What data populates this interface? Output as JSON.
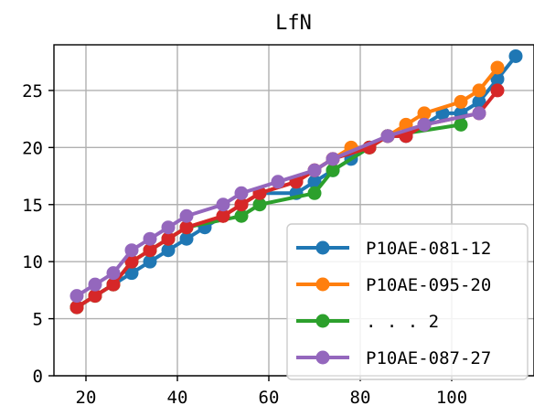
{
  "chart_data": {
    "type": "line",
    "title": "LfN",
    "xlabel": "",
    "ylabel": "",
    "xlim": [
      13,
      118
    ],
    "ylim": [
      0,
      29
    ],
    "xticks": [
      20,
      40,
      60,
      80,
      100
    ],
    "yticks": [
      0,
      5,
      10,
      15,
      20,
      25
    ],
    "grid": true,
    "legend_position": "lower-right",
    "series": [
      {
        "name": "P10AE-081-12",
        "color": "#1f77b4",
        "points": [
          [
            18,
            6
          ],
          [
            22,
            7
          ],
          [
            26,
            8
          ],
          [
            30,
            9
          ],
          [
            34,
            10
          ],
          [
            38,
            11
          ],
          [
            42,
            12
          ],
          [
            46,
            13
          ],
          [
            50,
            14
          ],
          [
            54,
            15
          ],
          [
            58,
            16
          ],
          [
            66,
            16
          ],
          [
            70,
            17
          ],
          [
            74,
            18
          ],
          [
            78,
            19
          ],
          [
            82,
            20
          ],
          [
            86,
            21
          ],
          [
            90,
            21
          ],
          [
            94,
            22
          ],
          [
            98,
            23
          ],
          [
            102,
            23
          ],
          [
            106,
            24
          ],
          [
            110,
            26
          ],
          [
            114,
            28
          ]
        ]
      },
      {
        "name": "P10AE-095-20",
        "color": "#ff7f0e",
        "points": [
          [
            18,
            6
          ],
          [
            22,
            7
          ],
          [
            26,
            8
          ],
          [
            30,
            10
          ],
          [
            34,
            11
          ],
          [
            38,
            12
          ],
          [
            42,
            13
          ],
          [
            50,
            14
          ],
          [
            54,
            15
          ],
          [
            58,
            16
          ],
          [
            66,
            17
          ],
          [
            70,
            18
          ],
          [
            74,
            19
          ],
          [
            78,
            20
          ],
          [
            82,
            20
          ],
          [
            86,
            21
          ],
          [
            90,
            22
          ],
          [
            94,
            23
          ],
          [
            102,
            24
          ],
          [
            106,
            25
          ],
          [
            110,
            27
          ]
        ]
      },
      {
        "name": ". . .  2",
        "color": "#2ca02c",
        "points": [
          [
            18,
            6
          ],
          [
            22,
            7
          ],
          [
            26,
            8
          ],
          [
            30,
            10
          ],
          [
            34,
            11
          ],
          [
            38,
            12
          ],
          [
            42,
            13
          ],
          [
            54,
            14
          ],
          [
            58,
            15
          ],
          [
            70,
            16
          ],
          [
            74,
            18
          ],
          [
            82,
            20
          ],
          [
            86,
            21
          ],
          [
            102,
            22
          ]
        ]
      },
      {
        "name": "",
        "color": "#d62728",
        "points": [
          [
            18,
            6
          ],
          [
            22,
            7
          ],
          [
            26,
            8
          ],
          [
            30,
            10
          ],
          [
            34,
            11
          ],
          [
            38,
            12
          ],
          [
            42,
            13
          ],
          [
            50,
            14
          ],
          [
            54,
            15
          ],
          [
            58,
            16
          ],
          [
            66,
            17
          ],
          [
            70,
            18
          ],
          [
            74,
            19
          ],
          [
            82,
            20
          ],
          [
            86,
            21
          ],
          [
            90,
            21
          ],
          [
            94,
            22
          ],
          [
            106,
            23
          ],
          [
            110,
            25
          ]
        ]
      },
      {
        "name": "P10AE-087-27",
        "color": "#9467bd",
        "points": [
          [
            18,
            7
          ],
          [
            22,
            8
          ],
          [
            26,
            9
          ],
          [
            30,
            11
          ],
          [
            34,
            12
          ],
          [
            38,
            13
          ],
          [
            42,
            14
          ],
          [
            50,
            15
          ],
          [
            54,
            16
          ],
          [
            62,
            17
          ],
          [
            70,
            18
          ],
          [
            74,
            19
          ],
          [
            86,
            21
          ],
          [
            94,
            22
          ],
          [
            106,
            23
          ]
        ]
      }
    ]
  }
}
